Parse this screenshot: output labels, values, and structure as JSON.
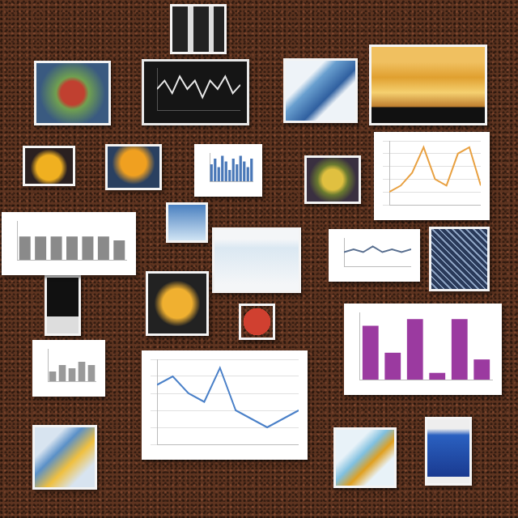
{
  "chart_data": [
    {
      "type": "line",
      "categories": [
        null,
        null,
        null,
        null,
        null,
        null,
        null,
        null,
        null,
        null,
        null,
        null
      ],
      "values": [
        5,
        7,
        4,
        8,
        5,
        7,
        3,
        7,
        5,
        8,
        4,
        6
      ],
      "color": "#e8e8e8",
      "ylim": [
        0,
        10
      ],
      "tick_labels": false,
      "grid": false
    },
    {
      "type": "bar",
      "categories": [
        null,
        null,
        null,
        null,
        null,
        null,
        null,
        null,
        null,
        null,
        null,
        null
      ],
      "values": [
        6,
        8,
        5,
        9,
        7,
        4,
        8,
        6,
        9,
        7,
        5,
        8
      ],
      "color": "#4a78b8",
      "ylim": [
        0,
        10
      ],
      "tick_labels": false,
      "grid": false
    },
    {
      "type": "line",
      "categories": [
        null,
        null,
        null,
        null,
        null,
        null,
        null,
        null,
        null
      ],
      "values": [
        2,
        3,
        5,
        9,
        4,
        3,
        8,
        9,
        3
      ],
      "color": "#e8a040",
      "ylim": [
        0,
        10
      ],
      "yticks": [
        0,
        2,
        4,
        6,
        8,
        10
      ],
      "tick_labels": false,
      "grid": true
    },
    {
      "type": "bar",
      "categories": [
        null,
        null,
        null,
        null,
        null,
        null,
        null
      ],
      "values": [
        6,
        6,
        6,
        6,
        6,
        6,
        5
      ],
      "color": "#8a8a8a",
      "ylim": [
        0,
        10
      ],
      "tick_labels": false,
      "grid": false
    },
    {
      "type": "line",
      "categories": [
        null,
        null,
        null,
        null,
        null,
        null,
        null,
        null
      ],
      "values": [
        5,
        6,
        5,
        7,
        5,
        6,
        5,
        6
      ],
      "color": "#5a7090",
      "ylim": [
        0,
        10
      ],
      "tick_labels": false,
      "grid": false
    },
    {
      "type": "bar",
      "categories": [
        null,
        null,
        null,
        null,
        null,
        null
      ],
      "values": [
        8,
        4,
        9,
        1,
        9,
        3
      ],
      "color": "#9b3aa0",
      "ylim": [
        0,
        10
      ],
      "yticks": [
        0,
        2,
        4,
        6,
        8,
        10
      ],
      "tick_labels": false,
      "grid": false
    },
    {
      "type": "line",
      "categories": [
        null,
        null,
        null,
        null,
        null,
        null,
        null,
        null,
        null,
        null
      ],
      "values": [
        7,
        8,
        6,
        5,
        9,
        4,
        3,
        2,
        3,
        4
      ],
      "color": "#4a80c8",
      "ylim": [
        0,
        10
      ],
      "yticks": [
        0,
        2,
        4,
        6,
        8,
        10
      ],
      "tick_labels": false,
      "grid": true
    },
    {
      "type": "bar",
      "categories": [
        null,
        null,
        null,
        null,
        null
      ],
      "values": [
        3,
        5,
        4,
        6,
        5
      ],
      "color": "#999999",
      "ylim": [
        0,
        10
      ],
      "tick_labels": false,
      "grid": false
    }
  ]
}
